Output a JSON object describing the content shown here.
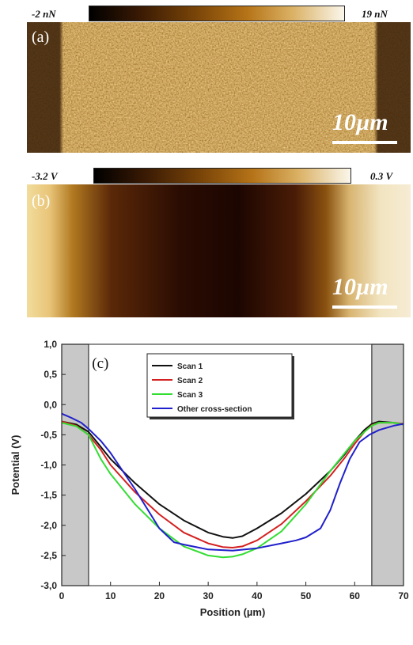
{
  "panel_a": {
    "label": "(a)",
    "colorbar_min": "-2 nN",
    "colorbar_max": "19 nN",
    "scale_bar": "10µm"
  },
  "panel_b": {
    "label": "(b)",
    "colorbar_min": "-3.2 V",
    "colorbar_max": "0.3 V",
    "scale_bar": "10µm"
  },
  "colors": {
    "afm_dark": "#1a0a02",
    "afm_mid": "#9a5a10",
    "afm_light": "#f4e9c8",
    "scan1": "#111111",
    "scan2": "#d42020",
    "scan3": "#33dd33",
    "other": "#2020cc",
    "shade": "#c8c8c8"
  },
  "chart_data": {
    "type": "line",
    "panel_label": "(c)",
    "xlabel": "Position (µm)",
    "ylabel": "Potential (V)",
    "xlim": [
      0,
      70
    ],
    "ylim": [
      -3.0,
      1.0
    ],
    "xticks": [
      "0",
      "10",
      "20",
      "30",
      "40",
      "50",
      "60",
      "70"
    ],
    "yticks": [
      "1,0",
      "0,5",
      "0,0",
      "-0,5",
      "-1,0",
      "-1,5",
      "-2,0",
      "-2,5",
      "-3,0"
    ],
    "grid": false,
    "legend_position": "top-center",
    "shaded_regions": [
      [
        0,
        5.5
      ],
      [
        63.5,
        70
      ]
    ],
    "series": [
      {
        "name": "Scan 1",
        "color": "#111111",
        "x": [
          0,
          3,
          5.5,
          8,
          10,
          15,
          20,
          25,
          30,
          33,
          35,
          37,
          40,
          45,
          50,
          55,
          58,
          60,
          62,
          63.5,
          65,
          68,
          70
        ],
        "y": [
          -0.28,
          -0.33,
          -0.45,
          -0.7,
          -0.9,
          -1.3,
          -1.65,
          -1.92,
          -2.12,
          -2.19,
          -2.21,
          -2.18,
          -2.05,
          -1.8,
          -1.48,
          -1.1,
          -0.82,
          -0.6,
          -0.42,
          -0.32,
          -0.28,
          -0.3,
          -0.33
        ]
      },
      {
        "name": "Scan 2",
        "color": "#d42020",
        "x": [
          0,
          3,
          5.5,
          8,
          10,
          15,
          20,
          25,
          30,
          33,
          35,
          37,
          40,
          45,
          50,
          55,
          58,
          60,
          62,
          63.5,
          65,
          68,
          70
        ],
        "y": [
          -0.28,
          -0.35,
          -0.5,
          -0.75,
          -1.0,
          -1.45,
          -1.82,
          -2.12,
          -2.3,
          -2.36,
          -2.37,
          -2.35,
          -2.25,
          -1.98,
          -1.6,
          -1.18,
          -0.88,
          -0.65,
          -0.45,
          -0.34,
          -0.3,
          -0.3,
          -0.32
        ]
      },
      {
        "name": "Scan 3",
        "color": "#33dd33",
        "x": [
          0,
          3,
          5.5,
          8,
          10,
          15,
          20,
          25,
          30,
          33,
          35,
          37,
          40,
          45,
          50,
          55,
          58,
          60,
          62,
          63.5,
          65,
          68,
          70
        ],
        "y": [
          -0.3,
          -0.36,
          -0.5,
          -0.9,
          -1.15,
          -1.65,
          -2.05,
          -2.35,
          -2.5,
          -2.53,
          -2.52,
          -2.48,
          -2.38,
          -2.1,
          -1.65,
          -1.1,
          -0.8,
          -0.6,
          -0.45,
          -0.35,
          -0.3,
          -0.3,
          -0.33
        ]
      },
      {
        "name": "Other cross-section",
        "color": "#2020cc",
        "x": [
          0,
          2,
          4,
          5.5,
          8,
          10,
          15,
          20,
          23,
          25,
          30,
          35,
          40,
          45,
          48,
          50,
          53,
          55,
          57,
          59,
          61,
          63,
          65,
          68,
          70
        ],
        "y": [
          -0.15,
          -0.22,
          -0.3,
          -0.4,
          -0.6,
          -0.8,
          -1.4,
          -2.05,
          -2.28,
          -2.32,
          -2.4,
          -2.42,
          -2.38,
          -2.3,
          -2.25,
          -2.2,
          -2.05,
          -1.75,
          -1.3,
          -0.9,
          -0.62,
          -0.5,
          -0.42,
          -0.35,
          -0.32
        ]
      }
    ]
  }
}
